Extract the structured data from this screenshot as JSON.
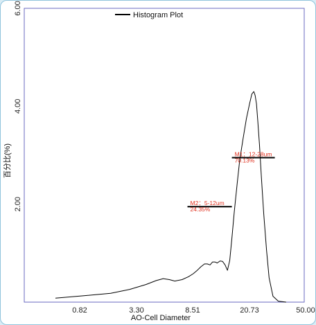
{
  "chart_data": {
    "type": "line",
    "legend": {
      "label": "Histogram Plot",
      "placement": "top-left"
    },
    "xlabel": "AO-Cell Diameter",
    "ylabel": "百分比(%)",
    "x_ticks": [
      "0.82",
      "3.30",
      "8.51",
      "20.73",
      "50.00"
    ],
    "y_ticks": [
      "2.00",
      "4.00",
      "6.00"
    ],
    "ylim": [
      0,
      6
    ],
    "log_x": true,
    "xlim": [
      0.2,
      50
    ],
    "grid": false,
    "series": [
      {
        "x": [
          0.37,
          0.65,
          1.1,
          1.6,
          2.2,
          2.7,
          3.1,
          3.5,
          3.9,
          4.5,
          5.1,
          5.6,
          6.0,
          6.5,
          7.0,
          7.4,
          7.8,
          8.2,
          8.6,
          9.0,
          9.5,
          10.0,
          10.5,
          11.0,
          11.5,
          12.0,
          12.6,
          13.3,
          14.0,
          15.0,
          16.0,
          17.0,
          17.8,
          18.5,
          19.0,
          19.5,
          20.0,
          20.7,
          21.5,
          22.5,
          23.8,
          25.0,
          27.0,
          30.0,
          35.0
        ],
        "y": [
          0.08,
          0.13,
          0.18,
          0.26,
          0.36,
          0.44,
          0.48,
          0.46,
          0.43,
          0.46,
          0.52,
          0.58,
          0.64,
          0.72,
          0.78,
          0.78,
          0.76,
          0.82,
          0.82,
          0.8,
          0.84,
          0.83,
          0.76,
          0.65,
          0.85,
          1.3,
          1.85,
          2.4,
          2.9,
          3.35,
          3.75,
          4.05,
          4.25,
          4.3,
          4.22,
          4.05,
          3.7,
          3.2,
          2.55,
          1.8,
          1.05,
          0.5,
          0.12,
          0.02,
          0.0
        ]
      }
    ],
    "markers": [
      {
        "label": "M1：12-28um",
        "value": "70.13%",
        "x_start": 12,
        "x_end": 28,
        "y": 2.95
      },
      {
        "label": "M2：5-12um",
        "value": "24.35%",
        "x_start": 5,
        "x_end": 12,
        "y": 1.95
      }
    ],
    "colors": {
      "line": "#000000",
      "marker_text": "#e0301e",
      "axis": "#6a6ac0"
    }
  }
}
